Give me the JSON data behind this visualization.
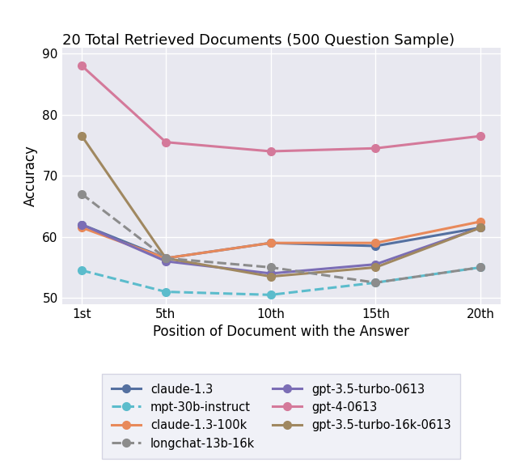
{
  "title": "20 Total Retrieved Documents (500 Question Sample)",
  "xlabel": "Position of Document with the Answer",
  "ylabel": "Accuracy",
  "x_positions": [
    1,
    5,
    10,
    15,
    20
  ],
  "x_tick_labels": [
    "1st",
    "5th",
    "10th",
    "15th",
    "20th"
  ],
  "ylim": [
    49,
    91
  ],
  "yticks": [
    50,
    60,
    70,
    80,
    90
  ],
  "series": [
    {
      "label": "claude-1.3",
      "color": "#5470a0",
      "linestyle": "solid",
      "marker": "o",
      "values": [
        62.0,
        56.5,
        59.0,
        58.5,
        61.5
      ]
    },
    {
      "label": "claude-1.3-100k",
      "color": "#e8895a",
      "linestyle": "solid",
      "marker": "o",
      "values": [
        61.5,
        56.5,
        59.0,
        59.0,
        62.5
      ]
    },
    {
      "label": "gpt-3.5-turbo-0613",
      "color": "#7b6db5",
      "linestyle": "solid",
      "marker": "o",
      "values": [
        62.0,
        56.0,
        54.0,
        55.5,
        61.5
      ]
    },
    {
      "label": "gpt-3.5-turbo-16k-0613",
      "color": "#a08860",
      "linestyle": "solid",
      "marker": "o",
      "values": [
        76.5,
        56.5,
        53.5,
        55.0,
        61.5
      ]
    },
    {
      "label": "mpt-30b-instruct",
      "color": "#5bbccc",
      "linestyle": "dashed",
      "marker": "o",
      "values": [
        54.5,
        51.0,
        50.5,
        52.5,
        55.0
      ]
    },
    {
      "label": "longchat-13b-16k",
      "color": "#8c8c8c",
      "linestyle": "dashed",
      "marker": "o",
      "values": [
        67.0,
        56.5,
        55.0,
        52.5,
        55.0
      ]
    },
    {
      "label": "gpt-4-0613",
      "color": "#d4799a",
      "linestyle": "solid",
      "marker": "o",
      "values": [
        88.0,
        75.5,
        74.0,
        74.5,
        76.5
      ]
    }
  ],
  "bg_color": "#e8e8f0",
  "legend_bg": "#edeef5",
  "grid_color": "#ffffff",
  "linewidth": 2.2,
  "markersize": 7,
  "title_fontsize": 13,
  "axis_fontsize": 12,
  "tick_fontsize": 11,
  "legend_fontsize": 10.5
}
